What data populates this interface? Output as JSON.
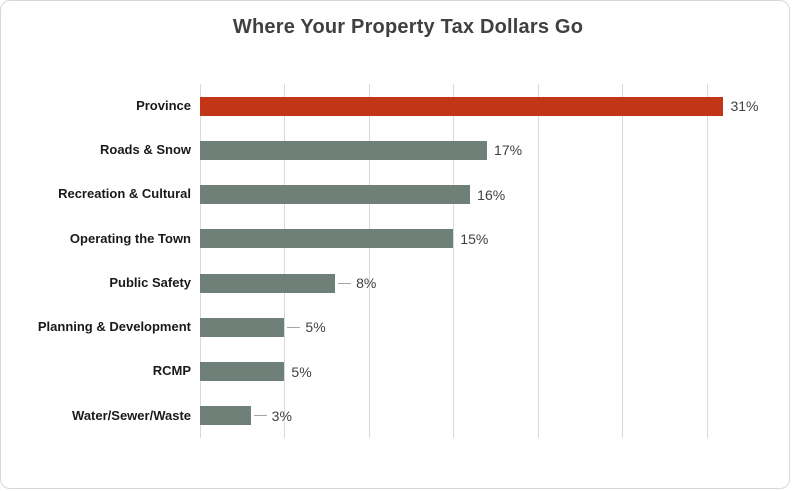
{
  "title": "Where Your Property Tax Dollars Go",
  "colors": {
    "title_text": "#404040",
    "category_text": "#1a1a1a",
    "value_text": "#404040",
    "gridline": "#d9d9d9",
    "leader_line": "#a6a6a6",
    "chart_border": "#d9d9d9",
    "province_bar": "#c23517",
    "default_bar": "#6f8078",
    "background": "#ffffff"
  },
  "chart_data": {
    "type": "bar",
    "orientation": "horizontal",
    "title": "Where Your Property Tax Dollars Go",
    "categories": [
      "Province",
      "Roads & Snow",
      "Recreation & Cultural",
      "Operating the Town",
      "Public Safety",
      "Planning & Development",
      "RCMP",
      "Water/Sewer/Waste"
    ],
    "values": [
      31,
      17,
      16,
      15,
      8,
      5,
      5,
      3
    ],
    "value_labels": [
      "31%",
      "17%",
      "16%",
      "15%",
      "8%",
      "5%",
      "5%",
      "3%"
    ],
    "bar_colors": [
      "#c23517",
      "#6f8078",
      "#6f8078",
      "#6f8078",
      "#6f8078",
      "#6f8078",
      "#6f8078",
      "#6f8078"
    ],
    "leader_lines": [
      false,
      false,
      false,
      false,
      true,
      true,
      false,
      true
    ],
    "xlabel": "",
    "ylabel": "",
    "xlim": [
      0,
      35
    ],
    "gridline_interval": 5,
    "grid": true,
    "legend": false,
    "axis_tick_labels_visible": false
  }
}
